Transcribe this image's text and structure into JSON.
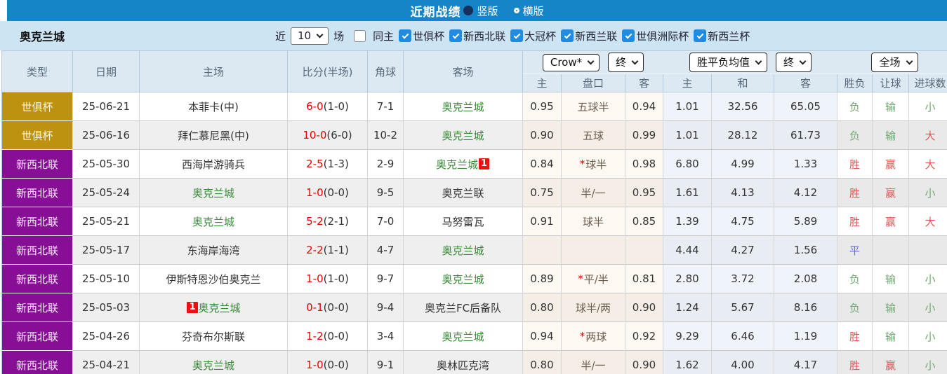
{
  "colors": {
    "titlebar_blue": "#1685c8",
    "filterbar_blue": "#cde4f3",
    "header_bg": "#dde9f2",
    "league_gold": "#bd9210",
    "league_purple": "#870f95",
    "score_red": "#e80000",
    "team_green": "#3a8a3a",
    "red_card_badge": "#ee0f0f",
    "result_win_red": "#e05858",
    "result_lose_green": "#74a874",
    "result_draw_blue": "#6b6bd8",
    "checkbox_blue": "#1e8be4"
  },
  "title_bar": {
    "title": "近期战绩",
    "view_options": [
      {
        "label": "竖版",
        "selected": true
      },
      {
        "label": "横版",
        "selected": false
      }
    ]
  },
  "filter_bar": {
    "team_name": "奥克兰城",
    "recent_label": "近",
    "recent_count": "10",
    "matches_label": "场",
    "filters": [
      {
        "label": "同主",
        "checked": false
      },
      {
        "label": "世俱杯",
        "checked": true
      },
      {
        "label": "新西北联",
        "checked": true
      },
      {
        "label": "大冠杯",
        "checked": true
      },
      {
        "label": "新西兰联",
        "checked": true
      },
      {
        "label": "世俱洲际杯",
        "checked": true
      },
      {
        "label": "新西兰杯",
        "checked": true
      }
    ]
  },
  "table": {
    "column_headers": [
      "类型",
      "日期",
      "主场",
      "比分(半场)",
      "角球",
      "客场"
    ],
    "selects": {
      "company": "Crow*",
      "time1": "终",
      "avg": "胜平负均值",
      "time2": "终",
      "scope": "全场"
    },
    "sub_headers": [
      "主",
      "盘口",
      "客",
      "主",
      "和",
      "客",
      "胜负",
      "让球",
      "进球数"
    ],
    "rows": [
      {
        "league": "世俱杯",
        "league_color": "gold",
        "date": "25-06-21",
        "home": {
          "name": "本菲卡(中)",
          "green": false,
          "badge": "",
          "badge_pos": ""
        },
        "score_full": "6-0",
        "score_half": "(1-0)",
        "corners": "7-1",
        "away": {
          "name": "奥克兰城",
          "green": true,
          "badge": "",
          "badge_pos": ""
        },
        "odds_home": "0.95",
        "handicap": "五球半",
        "handicap_star": false,
        "odds_away": "0.94",
        "avg_win": "1.01",
        "avg_draw": "32.56",
        "avg_lose": "65.05",
        "res_outcome": {
          "text": "负",
          "color": "green"
        },
        "res_handicap": {
          "text": "输",
          "color": "green"
        },
        "res_goals": {
          "text": "小",
          "color": "green"
        }
      },
      {
        "league": "世俱杯",
        "league_color": "gold",
        "date": "25-06-16",
        "home": {
          "name": "拜仁慕尼黑(中)",
          "green": false,
          "badge": "",
          "badge_pos": ""
        },
        "score_full": "10-0",
        "score_half": "(6-0)",
        "corners": "10-2",
        "away": {
          "name": "奥克兰城",
          "green": true,
          "badge": "",
          "badge_pos": ""
        },
        "odds_home": "0.90",
        "handicap": "五球",
        "handicap_star": false,
        "odds_away": "0.99",
        "avg_win": "1.01",
        "avg_draw": "28.12",
        "avg_lose": "61.73",
        "res_outcome": {
          "text": "负",
          "color": "green"
        },
        "res_handicap": {
          "text": "输",
          "color": "green"
        },
        "res_goals": {
          "text": "大",
          "color": "red"
        }
      },
      {
        "league": "新西北联",
        "league_color": "purple",
        "date": "25-05-30",
        "home": {
          "name": "西海岸游骑兵",
          "green": false,
          "badge": "",
          "badge_pos": ""
        },
        "score_full": "2-5",
        "score_half": "(1-3)",
        "corners": "2-9",
        "away": {
          "name": "奥克兰城",
          "green": true,
          "badge": "1",
          "badge_pos": "after"
        },
        "odds_home": "0.84",
        "handicap": "球半",
        "handicap_star": true,
        "odds_away": "0.98",
        "avg_win": "6.80",
        "avg_draw": "4.99",
        "avg_lose": "1.33",
        "res_outcome": {
          "text": "胜",
          "color": "red"
        },
        "res_handicap": {
          "text": "赢",
          "color": "red"
        },
        "res_goals": {
          "text": "大",
          "color": "red"
        }
      },
      {
        "league": "新西北联",
        "league_color": "purple",
        "date": "25-05-24",
        "home": {
          "name": "奥克兰城",
          "green": true,
          "badge": "",
          "badge_pos": ""
        },
        "score_full": "1-0",
        "score_half": "(0-0)",
        "corners": "9-5",
        "away": {
          "name": "奥克兰联",
          "green": false,
          "badge": "",
          "badge_pos": ""
        },
        "odds_home": "0.75",
        "handicap": "半/一",
        "handicap_star": false,
        "odds_away": "0.95",
        "avg_win": "1.61",
        "avg_draw": "4.13",
        "avg_lose": "4.12",
        "res_outcome": {
          "text": "胜",
          "color": "red"
        },
        "res_handicap": {
          "text": "赢",
          "color": "red"
        },
        "res_goals": {
          "text": "小",
          "color": "green"
        }
      },
      {
        "league": "新西北联",
        "league_color": "purple",
        "date": "25-05-21",
        "home": {
          "name": "奥克兰城",
          "green": true,
          "badge": "",
          "badge_pos": ""
        },
        "score_full": "5-2",
        "score_half": "(2-1)",
        "corners": "7-0",
        "away": {
          "name": "马努雷瓦",
          "green": false,
          "badge": "",
          "badge_pos": ""
        },
        "odds_home": "0.91",
        "handicap": "球半",
        "handicap_star": false,
        "odds_away": "0.85",
        "avg_win": "1.39",
        "avg_draw": "4.75",
        "avg_lose": "5.89",
        "res_outcome": {
          "text": "胜",
          "color": "red"
        },
        "res_handicap": {
          "text": "赢",
          "color": "red"
        },
        "res_goals": {
          "text": "大",
          "color": "red"
        }
      },
      {
        "league": "新西北联",
        "league_color": "purple",
        "date": "25-05-17",
        "home": {
          "name": "东海岸海湾",
          "green": false,
          "badge": "",
          "badge_pos": ""
        },
        "score_full": "2-2",
        "score_half": "(1-1)",
        "corners": "4-7",
        "away": {
          "name": "奥克兰城",
          "green": true,
          "badge": "",
          "badge_pos": ""
        },
        "odds_home": "",
        "handicap": "",
        "handicap_star": false,
        "odds_away": "",
        "avg_win": "4.44",
        "avg_draw": "4.27",
        "avg_lose": "1.56",
        "res_outcome": {
          "text": "平",
          "color": "blue"
        },
        "res_handicap": {
          "text": "",
          "color": ""
        },
        "res_goals": {
          "text": "",
          "color": ""
        }
      },
      {
        "league": "新西北联",
        "league_color": "purple",
        "date": "25-05-10",
        "home": {
          "name": "伊斯特恩沙伯奥克兰",
          "green": false,
          "badge": "",
          "badge_pos": ""
        },
        "score_full": "1-0",
        "score_half": "(1-0)",
        "corners": "9-7",
        "away": {
          "name": "奥克兰城",
          "green": true,
          "badge": "",
          "badge_pos": ""
        },
        "odds_home": "0.89",
        "handicap": "平/半",
        "handicap_star": true,
        "odds_away": "0.81",
        "avg_win": "2.80",
        "avg_draw": "3.72",
        "avg_lose": "2.08",
        "res_outcome": {
          "text": "负",
          "color": "green"
        },
        "res_handicap": {
          "text": "输",
          "color": "green"
        },
        "res_goals": {
          "text": "小",
          "color": "green"
        }
      },
      {
        "league": "新西北联",
        "league_color": "purple",
        "date": "25-05-03",
        "home": {
          "name": "奥克兰城",
          "green": true,
          "badge": "1",
          "badge_pos": "before"
        },
        "score_full": "0-1",
        "score_half": "(0-0)",
        "corners": "9-4",
        "away": {
          "name": "奥克兰FC后备队",
          "green": false,
          "badge": "",
          "badge_pos": ""
        },
        "odds_home": "0.80",
        "handicap": "球半/两",
        "handicap_star": false,
        "odds_away": "0.90",
        "avg_win": "1.24",
        "avg_draw": "5.67",
        "avg_lose": "8.16",
        "res_outcome": {
          "text": "负",
          "color": "green"
        },
        "res_handicap": {
          "text": "输",
          "color": "green"
        },
        "res_goals": {
          "text": "小",
          "color": "green"
        }
      },
      {
        "league": "新西北联",
        "league_color": "purple",
        "date": "25-04-26",
        "home": {
          "name": "芬奇布尔斯联",
          "green": false,
          "badge": "",
          "badge_pos": ""
        },
        "score_full": "1-2",
        "score_half": "(0-0)",
        "corners": "3-4",
        "away": {
          "name": "奥克兰城",
          "green": true,
          "badge": "",
          "badge_pos": ""
        },
        "odds_home": "0.94",
        "handicap": "两球",
        "handicap_star": true,
        "odds_away": "0.92",
        "avg_win": "9.29",
        "avg_draw": "6.46",
        "avg_lose": "1.19",
        "res_outcome": {
          "text": "胜",
          "color": "red"
        },
        "res_handicap": {
          "text": "输",
          "color": "green"
        },
        "res_goals": {
          "text": "小",
          "color": "green"
        }
      },
      {
        "league": "新西北联",
        "league_color": "purple",
        "date": "25-04-21",
        "home": {
          "name": "奥克兰城",
          "green": true,
          "badge": "",
          "badge_pos": ""
        },
        "score_full": "1-0",
        "score_half": "(0-0)",
        "corners": "9-1",
        "away": {
          "name": "奥林匹克湾",
          "green": false,
          "badge": "",
          "badge_pos": ""
        },
        "odds_home": "0.80",
        "handicap": "半/一",
        "handicap_star": false,
        "odds_away": "0.90",
        "avg_win": "1.62",
        "avg_draw": "4.00",
        "avg_lose": "4.17",
        "res_outcome": {
          "text": "胜",
          "color": "red"
        },
        "res_handicap": {
          "text": "赢",
          "color": "red"
        },
        "res_goals": {
          "text": "小",
          "color": "green"
        }
      }
    ]
  }
}
